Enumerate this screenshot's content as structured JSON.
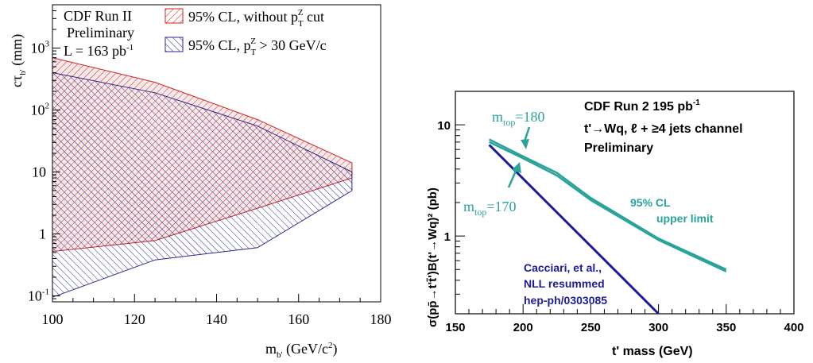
{
  "chart_data": [
    {
      "type": "area",
      "header": {
        "experiment": "CDF Run II",
        "status": "Preliminary",
        "lumi": "L = 163 pb",
        "lumi_sup": "-1"
      },
      "xlabel": {
        "main": "m",
        "sub": "b'",
        "unit": " (GeV/c",
        "sup": "2",
        "close": ")"
      },
      "ylabel": {
        "main": "cτ",
        "sub": "b'",
        "unit": " (mm)"
      },
      "xlim": [
        100,
        180
      ],
      "ylim": [
        0.08,
        5000
      ],
      "yscale": "log",
      "x_ticks": [
        "100",
        "120",
        "140",
        "160",
        "180"
      ],
      "y_ticks": [
        {
          "value": 0.1,
          "label": "10",
          "sup": "-1"
        },
        {
          "value": 1,
          "label": "1",
          "sup": ""
        },
        {
          "value": 10,
          "label": "10",
          "sup": ""
        },
        {
          "value": 100,
          "label": "10",
          "sup": "2"
        },
        {
          "value": 1000,
          "label": "10",
          "sup": "3"
        }
      ],
      "legend_position": "top-right",
      "series": [
        {
          "name": "95% CL, without p",
          "name_sub": "T",
          "name_sup": "Z",
          "name_rest": " cut",
          "color": "#cc2222",
          "fill": "#f4dcdc",
          "x_upper": [
            100,
            125,
            150,
            173
          ],
          "y_upper": [
            700,
            280,
            70,
            14
          ],
          "x_lower": [
            100,
            125,
            150,
            173
          ],
          "y_lower": [
            0.52,
            0.78,
            2.6,
            8
          ]
        },
        {
          "name": "95% CL, p",
          "name_sub": "T",
          "name_sup": "Z",
          "name_rest": " > 30 GeV/c",
          "color": "#2a2a8a",
          "fill": "#e2e2f0",
          "x_upper": [
            100,
            125,
            150,
            173
          ],
          "y_upper": [
            400,
            190,
            55,
            10
          ],
          "x_lower": [
            100,
            125,
            150,
            173
          ],
          "y_lower": [
            0.095,
            0.38,
            0.6,
            5
          ]
        }
      ]
    },
    {
      "type": "line",
      "ylabel": "σ(pp̄→t't̄')B(t'→Wq)²  (pb)",
      "xlabel": "t' mass  (GeV)",
      "xlim": [
        150,
        400
      ],
      "ylim": [
        0.2,
        20
      ],
      "yscale": "log",
      "x_ticks": [
        "150",
        "200",
        "250",
        "300",
        "350",
        "400"
      ],
      "y_ticks": [
        {
          "value": 1,
          "label": "1"
        },
        {
          "value": 10,
          "label": "10"
        }
      ],
      "texts": {
        "line1": "CDF Run 2  195 pb",
        "line1_sup": "-1",
        "line2": "t'→Wq, ℓ + ≥4 jets channel",
        "line3": "Preliminary",
        "cl1": "95% CL",
        "cl2": "upper limit",
        "theory1": "Cacciari, et al.,",
        "theory2": "NLL resummed",
        "theory3": "hep-ph/0303085",
        "mtop180_m": "m",
        "mtop180_sub": "top",
        "mtop180_val": "=180",
        "mtop170_m": "m",
        "mtop170_sub": "top",
        "mtop170_val": "=170"
      },
      "series": [
        {
          "color": "#2aa39b",
          "x": [
            175,
            200,
            225,
            250,
            300,
            350
          ],
          "y": [
            7.4,
            5.2,
            3.7,
            2.2,
            0.95,
            0.5
          ]
        },
        {
          "color": "#2aa39b",
          "x": [
            175,
            200,
            225,
            250,
            300,
            350
          ],
          "y": [
            7.0,
            5.0,
            3.5,
            2.1,
            0.92,
            0.48
          ]
        },
        {
          "color": "#1c1c96",
          "x": [
            175,
            300
          ],
          "y": [
            6.6,
            0.2
          ]
        }
      ]
    }
  ]
}
